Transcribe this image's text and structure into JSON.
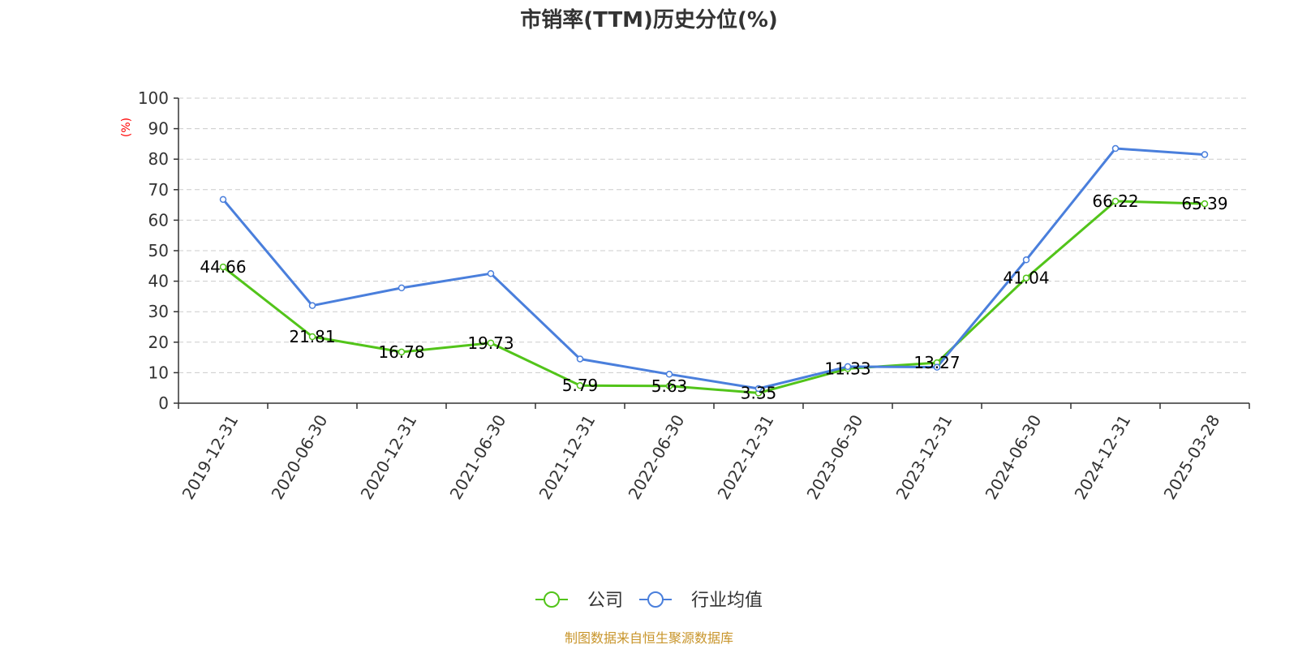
{
  "chart_data": {
    "type": "line",
    "title": "市销率(TTM)历史分位(%)",
    "ylabel": "(%)",
    "xlabel": "",
    "ylim": [
      0,
      100
    ],
    "yticks": [
      0,
      10,
      20,
      30,
      40,
      50,
      60,
      70,
      80,
      90,
      100
    ],
    "grid": true,
    "legend_position": "bottom",
    "categories": [
      "2019-12-31",
      "2020-06-30",
      "2020-12-31",
      "2021-06-30",
      "2021-12-31",
      "2022-06-30",
      "2022-12-31",
      "2023-06-30",
      "2023-12-31",
      "2024-06-30",
      "2024-12-31",
      "2025-03-28"
    ],
    "series": [
      {
        "name": "公司",
        "color": "#52c41a",
        "values": [
          44.66,
          21.81,
          16.78,
          19.73,
          5.79,
          5.63,
          3.35,
          11.33,
          13.27,
          41.04,
          66.22,
          65.39
        ],
        "data_labels": [
          "44.66",
          "21.81",
          "16.78",
          "19.73",
          "5.79",
          "5.63",
          "3.35",
          "11.33",
          "13.27",
          "41.04",
          "66.22",
          "65.39"
        ]
      },
      {
        "name": "行业均值",
        "color": "#4a7fdc",
        "values": [
          66.8,
          32.0,
          37.8,
          42.5,
          14.5,
          9.5,
          4.8,
          12.0,
          11.8,
          47.0,
          83.5,
          81.5
        ]
      }
    ],
    "source": "制图数据来自恒生聚源数据库"
  },
  "colors": {
    "axis": "#333333",
    "grid": "#cccccc",
    "unit_label": "#ff0000",
    "source": "#c8952b"
  }
}
